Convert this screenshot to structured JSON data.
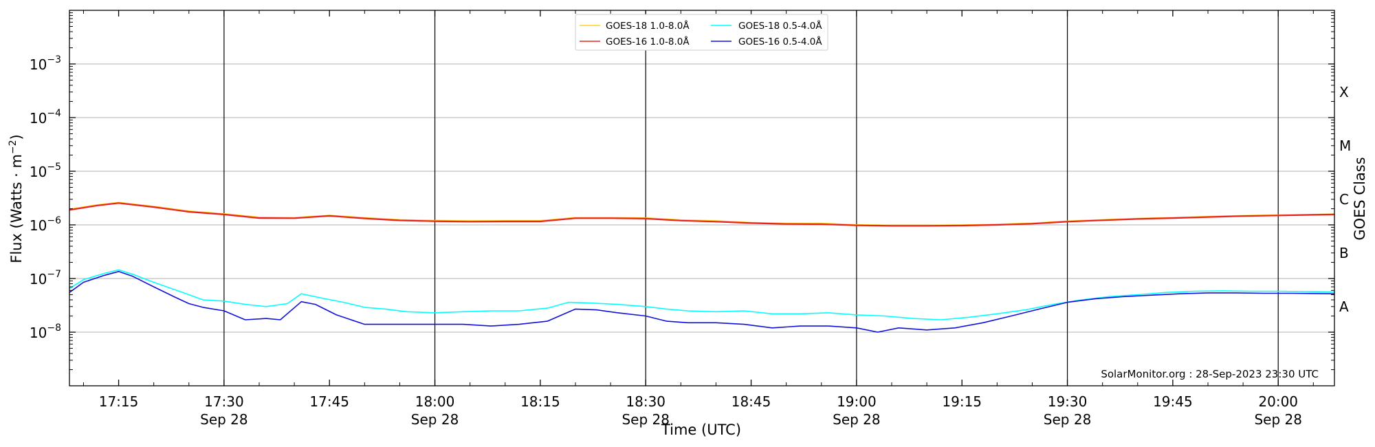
{
  "chart_data": {
    "type": "line",
    "xlabel": "Time (UTC)",
    "ylabel": "Flux (Watts · m",
    "ylabel_sup": "−2",
    "ylabel_close": ")",
    "y2label": "GOES Class",
    "yscale": "log",
    "ylim": [
      1e-09,
      0.01
    ],
    "xlim": [
      "2023-09-28T17:08",
      "2023-09-28T20:08"
    ],
    "grid": "horizontal",
    "legend_position": "top-center",
    "y_ticks": [
      {
        "exp": 3,
        "value": 0.001
      },
      {
        "exp": 4,
        "value": 0.0001
      },
      {
        "exp": 5,
        "value": 1e-05
      },
      {
        "exp": 6,
        "value": 1e-06
      },
      {
        "exp": 7,
        "value": 1e-07
      },
      {
        "exp": 8,
        "value": 1e-08
      }
    ],
    "y_tick_base": "10",
    "goes_classes": [
      {
        "label": "X",
        "value": 0.0003
      },
      {
        "label": "M",
        "value": 3e-05
      },
      {
        "label": "C",
        "value": 3e-06
      },
      {
        "label": "B",
        "value": 3e-07
      },
      {
        "label": "A",
        "value": 3e-08
      }
    ],
    "x_ticks": [
      {
        "time": "17:15",
        "date": ""
      },
      {
        "time": "17:30",
        "date": "Sep 28"
      },
      {
        "time": "17:45",
        "date": ""
      },
      {
        "time": "18:00",
        "date": "Sep 28"
      },
      {
        "time": "18:15",
        "date": ""
      },
      {
        "time": "18:30",
        "date": "Sep 28"
      },
      {
        "time": "18:45",
        "date": ""
      },
      {
        "time": "19:00",
        "date": "Sep 28"
      },
      {
        "time": "19:15",
        "date": ""
      },
      {
        "time": "19:30",
        "date": "Sep 28"
      },
      {
        "time": "19:45",
        "date": ""
      },
      {
        "time": "20:00",
        "date": "Sep 28"
      }
    ],
    "vertical_markers": [
      "17:30",
      "18:00",
      "18:30",
      "19:00",
      "19:30",
      "20:00"
    ],
    "credit": "SolarMonitor.org : 28-Sep-2023 23:30 UTC",
    "series": [
      {
        "name": "GOES-18 1.0-8.0Å",
        "color": "#ffd21f",
        "x": [
          "17:08",
          "17:12",
          "17:15",
          "17:20",
          "17:25",
          "17:30",
          "17:35",
          "17:40",
          "17:45",
          "17:50",
          "17:55",
          "18:00",
          "18:05",
          "18:10",
          "18:15",
          "18:20",
          "18:25",
          "18:30",
          "18:35",
          "18:40",
          "18:45",
          "18:50",
          "18:55",
          "19:00",
          "19:05",
          "19:10",
          "19:15",
          "19:20",
          "19:25",
          "19:30",
          "19:35",
          "19:40",
          "19:45",
          "19:50",
          "19:55",
          "20:00",
          "20:08"
        ],
        "values": [
          1.95e-06,
          2.35e-06,
          2.6e-06,
          2.2e-06,
          1.8e-06,
          1.6e-06,
          1.38e-06,
          1.36e-06,
          1.5e-06,
          1.35e-06,
          1.24e-06,
          1.2e-06,
          1.18e-06,
          1.19e-06,
          1.19e-06,
          1.36e-06,
          1.36e-06,
          1.34e-06,
          1.23e-06,
          1.18e-06,
          1.1e-06,
          1.06e-06,
          1.06e-06,
          1e-06,
          9.8e-07,
          9.8e-07,
          9.9e-07,
          1.02e-06,
          1.07e-06,
          1.17e-06,
          1.24e-06,
          1.31e-06,
          1.36e-06,
          1.42e-06,
          1.48e-06,
          1.52e-06,
          1.58e-06
        ]
      },
      {
        "name": "GOES-16 1.0-8.0Å",
        "color": "#e8231f",
        "x": [
          "17:08",
          "17:12",
          "17:15",
          "17:20",
          "17:25",
          "17:30",
          "17:35",
          "17:40",
          "17:45",
          "17:50",
          "17:55",
          "18:00",
          "18:05",
          "18:10",
          "18:15",
          "18:20",
          "18:25",
          "18:30",
          "18:35",
          "18:40",
          "18:45",
          "18:50",
          "18:55",
          "19:00",
          "19:05",
          "19:10",
          "19:15",
          "19:20",
          "19:25",
          "19:30",
          "19:35",
          "19:40",
          "19:45",
          "19:50",
          "19:55",
          "20:00",
          "20:08"
        ],
        "values": [
          1.9e-06,
          2.3e-06,
          2.55e-06,
          2.15e-06,
          1.75e-06,
          1.56e-06,
          1.34e-06,
          1.33e-06,
          1.47e-06,
          1.32e-06,
          1.21e-06,
          1.17e-06,
          1.15e-06,
          1.16e-06,
          1.16e-06,
          1.33e-06,
          1.33e-06,
          1.31e-06,
          1.2e-06,
          1.15e-06,
          1.08e-06,
          1.04e-06,
          1.03e-06,
          9.8e-07,
          9.6e-07,
          9.6e-07,
          9.7e-07,
          1e-06,
          1.05e-06,
          1.15e-06,
          1.22e-06,
          1.29e-06,
          1.34e-06,
          1.4e-06,
          1.46e-06,
          1.5e-06,
          1.56e-06
        ]
      },
      {
        "name": "GOES-18 0.5-4.0Å",
        "color": "#00ffff",
        "x": [
          "17:08",
          "17:10",
          "17:13",
          "17:15",
          "17:17",
          "17:20",
          "17:23",
          "17:25",
          "17:27",
          "17:30",
          "17:33",
          "17:36",
          "17:39",
          "17:41",
          "17:44",
          "17:47",
          "17:50",
          "17:53",
          "17:56",
          "18:00",
          "18:04",
          "18:08",
          "18:12",
          "18:16",
          "18:19",
          "18:22",
          "18:26",
          "18:30",
          "18:33",
          "18:36",
          "18:40",
          "18:44",
          "18:48",
          "18:52",
          "18:56",
          "19:00",
          "19:04",
          "19:08",
          "19:12",
          "19:16",
          "19:20",
          "19:24",
          "19:28",
          "19:32",
          "19:36",
          "19:40",
          "19:44",
          "19:48",
          "19:52",
          "19:56",
          "20:00",
          "20:04",
          "20:08"
        ],
        "values": [
          6.5e-08,
          9.5e-08,
          1.25e-07,
          1.45e-07,
          1.2e-07,
          8.5e-08,
          6.2e-08,
          5e-08,
          4e-08,
          3.8e-08,
          3.3e-08,
          3e-08,
          3.4e-08,
          5.2e-08,
          4.3e-08,
          3.6e-08,
          2.9e-08,
          2.7e-08,
          2.4e-08,
          2.3e-08,
          2.4e-08,
          2.5e-08,
          2.5e-08,
          2.8e-08,
          3.6e-08,
          3.5e-08,
          3.3e-08,
          3e-08,
          2.7e-08,
          2.5e-08,
          2.4e-08,
          2.5e-08,
          2.2e-08,
          2.2e-08,
          2.3e-08,
          2.1e-08,
          2e-08,
          1.8e-08,
          1.7e-08,
          1.9e-08,
          2.2e-08,
          2.6e-08,
          3.3e-08,
          4e-08,
          4.6e-08,
          5e-08,
          5.5e-08,
          5.8e-08,
          5.9e-08,
          5.8e-08,
          5.8e-08,
          5.7e-08,
          5.6e-08
        ]
      },
      {
        "name": "GOES-16 0.5-4.0Å",
        "color": "#1010dd",
        "x": [
          "17:08",
          "17:10",
          "17:13",
          "17:15",
          "17:17",
          "17:20",
          "17:23",
          "17:25",
          "17:27",
          "17:30",
          "17:33",
          "17:36",
          "17:38",
          "17:41",
          "17:43",
          "17:46",
          "17:50",
          "17:53",
          "17:56",
          "18:00",
          "18:04",
          "18:08",
          "18:12",
          "18:16",
          "18:20",
          "18:23",
          "18:26",
          "18:30",
          "18:33",
          "18:36",
          "18:40",
          "18:44",
          "18:48",
          "18:52",
          "18:56",
          "19:00",
          "19:03",
          "19:06",
          "19:10",
          "19:14",
          "19:18",
          "19:22",
          "19:26",
          "19:30",
          "19:34",
          "19:38",
          "19:42",
          "19:46",
          "19:50",
          "19:54",
          "19:58",
          "20:02",
          "20:08"
        ],
        "values": [
          5.5e-08,
          8.5e-08,
          1.15e-07,
          1.35e-07,
          1.1e-07,
          7e-08,
          4.5e-08,
          3.4e-08,
          2.9e-08,
          2.5e-08,
          1.7e-08,
          1.8e-08,
          1.7e-08,
          3.7e-08,
          3.3e-08,
          2.1e-08,
          1.4e-08,
          1.4e-08,
          1.4e-08,
          1.4e-08,
          1.4e-08,
          1.3e-08,
          1.4e-08,
          1.6e-08,
          2.7e-08,
          2.6e-08,
          2.3e-08,
          2e-08,
          1.6e-08,
          1.5e-08,
          1.5e-08,
          1.4e-08,
          1.2e-08,
          1.3e-08,
          1.3e-08,
          1.2e-08,
          1e-08,
          1.2e-08,
          1.1e-08,
          1.2e-08,
          1.5e-08,
          2e-08,
          2.7e-08,
          3.6e-08,
          4.2e-08,
          4.6e-08,
          4.9e-08,
          5.2e-08,
          5.4e-08,
          5.4e-08,
          5.3e-08,
          5.3e-08,
          5.2e-08
        ]
      }
    ]
  }
}
